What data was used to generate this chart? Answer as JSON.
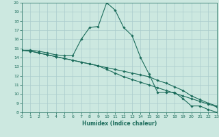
{
  "xlabel": "Humidex (Indice chaleur)",
  "background_color": "#cce8e0",
  "grid_color": "#aacccc",
  "line_color": "#1a6b5a",
  "xlim": [
    0,
    23
  ],
  "ylim": [
    8,
    20
  ],
  "xticks": [
    0,
    1,
    2,
    3,
    4,
    5,
    6,
    7,
    8,
    9,
    10,
    11,
    12,
    13,
    14,
    15,
    16,
    17,
    18,
    19,
    20,
    21,
    22,
    23
  ],
  "yticks": [
    8,
    9,
    10,
    11,
    12,
    13,
    14,
    15,
    16,
    17,
    18,
    19,
    20
  ],
  "line1_x": [
    0,
    1,
    2,
    3,
    4,
    5,
    6,
    7,
    8,
    9,
    10,
    11,
    12,
    13,
    14,
    15,
    16,
    17,
    18,
    19,
    20,
    21,
    22,
    23
  ],
  "line1_y": [
    14.8,
    14.8,
    14.7,
    14.5,
    14.3,
    14.2,
    14.2,
    16.0,
    17.3,
    17.4,
    20.0,
    19.2,
    17.3,
    16.4,
    14.0,
    12.2,
    10.2,
    10.2,
    10.2,
    9.5,
    8.7,
    8.7,
    8.3,
    8.0
  ],
  "line2_x": [
    0,
    1,
    2,
    3,
    4,
    5,
    6,
    7,
    8,
    9,
    10,
    11,
    12,
    13,
    14,
    15,
    16,
    17,
    18,
    19,
    20,
    21,
    22,
    23
  ],
  "line2_y": [
    14.8,
    14.7,
    14.5,
    14.3,
    14.1,
    13.9,
    13.7,
    13.5,
    13.3,
    13.1,
    12.9,
    12.7,
    12.5,
    12.3,
    12.1,
    11.9,
    11.5,
    11.2,
    10.8,
    10.4,
    9.8,
    9.4,
    9.0,
    8.7
  ],
  "line3_x": [
    0,
    1,
    2,
    3,
    4,
    5,
    6,
    7,
    8,
    9,
    10,
    11,
    12,
    13,
    14,
    15,
    16,
    17,
    18,
    19,
    20,
    21,
    22,
    23
  ],
  "line3_y": [
    14.8,
    14.7,
    14.5,
    14.3,
    14.1,
    13.9,
    13.7,
    13.5,
    13.3,
    13.1,
    12.7,
    12.3,
    11.9,
    11.6,
    11.3,
    11.0,
    10.7,
    10.4,
    10.1,
    9.8,
    9.5,
    9.2,
    8.9,
    8.6
  ]
}
